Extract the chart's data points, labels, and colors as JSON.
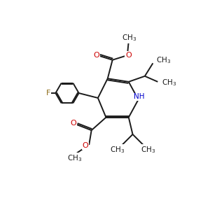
{
  "bond_color": "#1a1a1a",
  "oxygen_color": "#cc0000",
  "nitrogen_color": "#0000cc",
  "fluorine_color": "#8B6914",
  "line_width": 1.4,
  "figsize": [
    3.0,
    3.0
  ],
  "dpi": 100,
  "xlim": [
    0,
    10
  ],
  "ylim": [
    0,
    10
  ]
}
